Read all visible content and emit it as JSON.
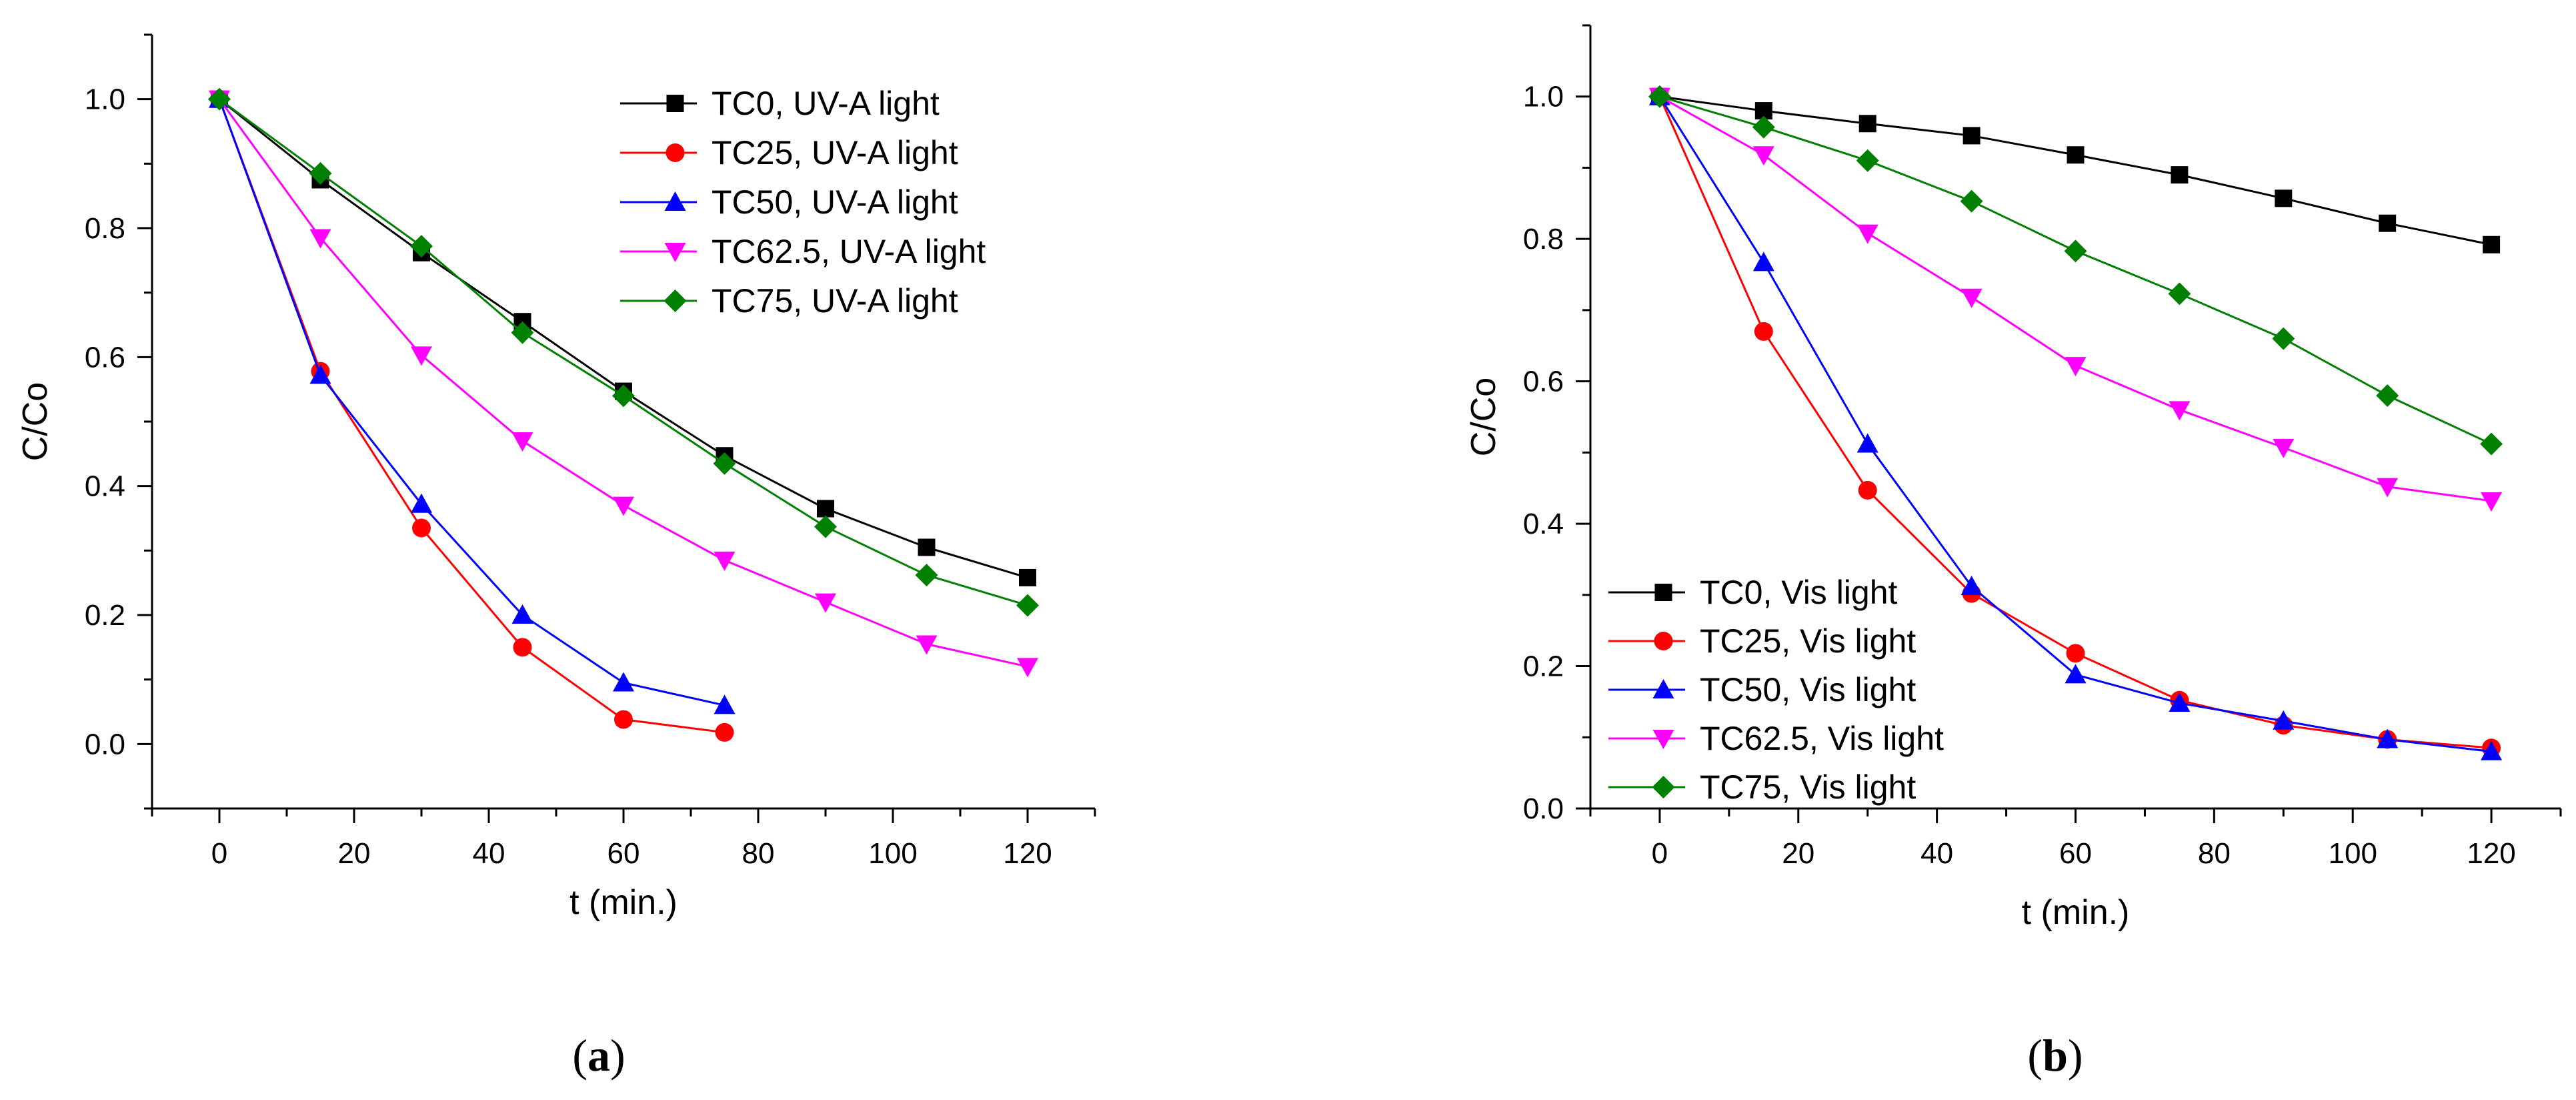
{
  "figure": {
    "panel_labels": [
      "a",
      "b"
    ]
  },
  "chart_data": [
    {
      "type": "line",
      "panel": "a",
      "xlabel": "t (min.)",
      "ylabel": "C/Co",
      "xlim": [
        -10,
        130
      ],
      "ylim": [
        -0.1,
        1.1
      ],
      "xticks": [
        0,
        20,
        40,
        60,
        80,
        100,
        120
      ],
      "yticks": [
        0.0,
        0.2,
        0.4,
        0.6,
        0.8,
        1.0
      ],
      "ytick_labels": [
        "0.0",
        "0.2",
        "0.4",
        "0.6",
        "0.8",
        "1.0"
      ],
      "legend_position": "top-right",
      "series": [
        {
          "name": "TC0, UV-A light",
          "color": "#000000",
          "marker": "square",
          "x": [
            0,
            15,
            30,
            45,
            60,
            75,
            90,
            105,
            120
          ],
          "y": [
            1.0,
            0.875,
            0.762,
            0.655,
            0.547,
            0.447,
            0.365,
            0.305,
            0.258
          ]
        },
        {
          "name": "TC25, UV-A light",
          "color": "#ff0000",
          "marker": "circle",
          "x": [
            0,
            15,
            30,
            45,
            60,
            75
          ],
          "y": [
            1.0,
            0.578,
            0.335,
            0.15,
            0.038,
            0.018
          ]
        },
        {
          "name": "TC50, UV-A light",
          "color": "#0000ff",
          "marker": "triangle-up",
          "x": [
            0,
            15,
            30,
            45,
            60,
            75
          ],
          "y": [
            1.0,
            0.572,
            0.372,
            0.2,
            0.095,
            0.06
          ]
        },
        {
          "name": "TC62.5, UV-A light",
          "color": "#ff00ff",
          "marker": "triangle-down",
          "x": [
            0,
            15,
            30,
            45,
            60,
            75,
            90,
            105,
            120
          ],
          "y": [
            1.0,
            0.785,
            0.603,
            0.47,
            0.37,
            0.285,
            0.22,
            0.155,
            0.12
          ]
        },
        {
          "name": "TC75, UV-A light",
          "color": "#008000",
          "marker": "diamond",
          "x": [
            0,
            15,
            30,
            45,
            60,
            75,
            90,
            105,
            120
          ],
          "y": [
            1.0,
            0.885,
            0.772,
            0.638,
            0.54,
            0.435,
            0.337,
            0.262,
            0.215
          ]
        }
      ]
    },
    {
      "type": "line",
      "panel": "b",
      "xlabel": "t (min.)",
      "ylabel": "C/Co",
      "xlim": [
        -10,
        130
      ],
      "ylim": [
        0.0,
        1.1
      ],
      "xticks": [
        0,
        20,
        40,
        60,
        80,
        100,
        120
      ],
      "yticks": [
        0.0,
        0.2,
        0.4,
        0.6,
        0.8,
        1.0
      ],
      "ytick_labels": [
        "0.0",
        "0.2",
        "0.4",
        "0.6",
        "0.8",
        "1.0"
      ],
      "legend_position": "bottom-left",
      "series": [
        {
          "name": "TC0, Vis light",
          "color": "#000000",
          "marker": "square",
          "x": [
            0,
            15,
            30,
            45,
            60,
            75,
            90,
            105,
            120
          ],
          "y": [
            1.0,
            0.98,
            0.962,
            0.945,
            0.918,
            0.89,
            0.857,
            0.822,
            0.792
          ]
        },
        {
          "name": "TC25, Vis light",
          "color": "#ff0000",
          "marker": "circle",
          "x": [
            0,
            15,
            30,
            45,
            60,
            75,
            90,
            105,
            120
          ],
          "y": [
            1.0,
            0.67,
            0.447,
            0.302,
            0.218,
            0.152,
            0.117,
            0.097,
            0.085
          ]
        },
        {
          "name": "TC50, Vis light",
          "color": "#0000ff",
          "marker": "triangle-up",
          "x": [
            0,
            15,
            30,
            45,
            60,
            75,
            90,
            105,
            120
          ],
          "y": [
            1.0,
            0.767,
            0.512,
            0.312,
            0.188,
            0.148,
            0.123,
            0.097,
            0.08
          ]
        },
        {
          "name": "TC62.5, Vis light",
          "color": "#ff00ff",
          "marker": "triangle-down",
          "x": [
            0,
            15,
            30,
            45,
            60,
            75,
            90,
            105,
            120
          ],
          "y": [
            1.0,
            0.918,
            0.808,
            0.718,
            0.622,
            0.56,
            0.507,
            0.452,
            0.432
          ]
        },
        {
          "name": "TC75, Vis light",
          "color": "#008000",
          "marker": "diamond",
          "x": [
            0,
            15,
            30,
            45,
            60,
            75,
            90,
            105,
            120
          ],
          "y": [
            1.0,
            0.957,
            0.91,
            0.853,
            0.783,
            0.723,
            0.66,
            0.58,
            0.512
          ]
        }
      ]
    }
  ]
}
